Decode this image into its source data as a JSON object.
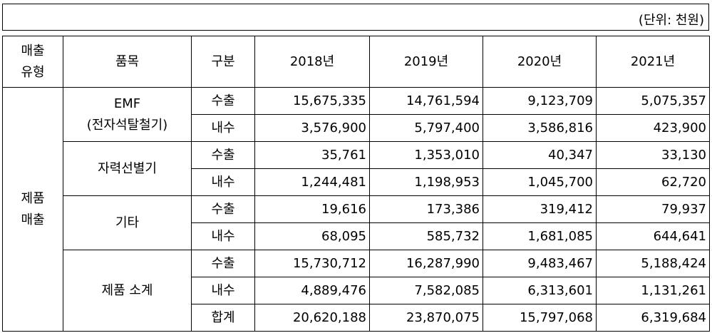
{
  "unit": "(단위: 천원)",
  "table": {
    "header": {
      "category": "매출\n유형",
      "item": "품목",
      "kind": "구분",
      "years": [
        "2018년",
        "2019년",
        "2020년",
        "2021년"
      ]
    },
    "category": "제품\n매출",
    "groups": [
      {
        "item": "EMF\n(전자석탈철기)",
        "rows": [
          {
            "kind": "수출",
            "values": [
              "15,675,335",
              "14,761,594",
              "9,123,709",
              "5,075,357"
            ]
          },
          {
            "kind": "내수",
            "values": [
              "3,576,900",
              "5,797,400",
              "3,586,816",
              "423,900"
            ]
          }
        ]
      },
      {
        "item": "자력선별기",
        "rows": [
          {
            "kind": "수출",
            "values": [
              "35,761",
              "1,353,010",
              "40,347",
              "33,130"
            ]
          },
          {
            "kind": "내수",
            "values": [
              "1,244,481",
              "1,198,953",
              "1,045,700",
              "62,720"
            ]
          }
        ]
      },
      {
        "item": "기타",
        "rows": [
          {
            "kind": "수출",
            "values": [
              "19,616",
              "173,386",
              "319,412",
              "79,937"
            ]
          },
          {
            "kind": "내수",
            "values": [
              "68,095",
              "585,732",
              "1,681,085",
              "644,641"
            ]
          }
        ]
      },
      {
        "item": "제품 소계",
        "rows": [
          {
            "kind": "수출",
            "values": [
              "15,730,712",
              "16,287,990",
              "9,483,467",
              "5,188,424"
            ]
          },
          {
            "kind": "내수",
            "values": [
              "4,889,476",
              "7,582,085",
              "6,313,601",
              "1,131,261"
            ]
          },
          {
            "kind": "합계",
            "values": [
              "20,620,188",
              "23,870,075",
              "15,797,068",
              "6,319,684"
            ]
          }
        ]
      }
    ]
  }
}
